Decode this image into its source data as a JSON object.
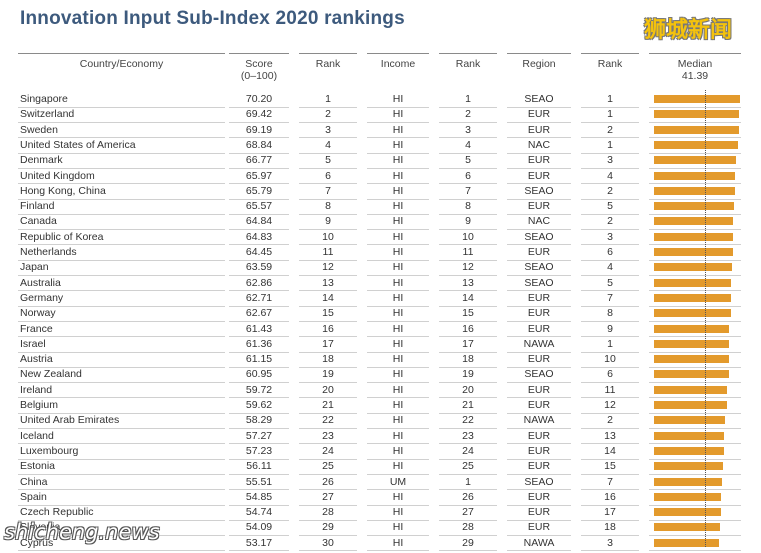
{
  "title": "Innovation Input Sub-Index 2020 rankings",
  "watermark_top": "狮城新闻",
  "watermark_bottom": "shicheng.news",
  "headers": {
    "country": "Country/Economy",
    "score": "Score",
    "score_sub": "(0–100)",
    "rank": "Rank",
    "income": "Income",
    "rank2": "Rank",
    "region": "Region",
    "rank3": "Rank",
    "median": "Median",
    "median_value": "41.39"
  },
  "chart_data": {
    "type": "bar",
    "orientation": "horizontal",
    "title": "Innovation Input Sub-Index 2020 rankings",
    "median": 41.39,
    "xlim": [
      0,
      100
    ],
    "rows": [
      {
        "country": "Singapore",
        "score": 70.2,
        "rank": 1,
        "income": "HI",
        "income_rank": 1,
        "region": "SEAO",
        "region_rank": 1
      },
      {
        "country": "Switzerland",
        "score": 69.42,
        "rank": 2,
        "income": "HI",
        "income_rank": 2,
        "region": "EUR",
        "region_rank": 1
      },
      {
        "country": "Sweden",
        "score": 69.19,
        "rank": 3,
        "income": "HI",
        "income_rank": 3,
        "region": "EUR",
        "region_rank": 2
      },
      {
        "country": "United States of America",
        "score": 68.84,
        "rank": 4,
        "income": "HI",
        "income_rank": 4,
        "region": "NAC",
        "region_rank": 1
      },
      {
        "country": "Denmark",
        "score": 66.77,
        "rank": 5,
        "income": "HI",
        "income_rank": 5,
        "region": "EUR",
        "region_rank": 3
      },
      {
        "country": "United Kingdom",
        "score": 65.97,
        "rank": 6,
        "income": "HI",
        "income_rank": 6,
        "region": "EUR",
        "region_rank": 4
      },
      {
        "country": "Hong Kong, China",
        "score": 65.79,
        "rank": 7,
        "income": "HI",
        "income_rank": 7,
        "region": "SEAO",
        "region_rank": 2
      },
      {
        "country": "Finland",
        "score": 65.57,
        "rank": 8,
        "income": "HI",
        "income_rank": 8,
        "region": "EUR",
        "region_rank": 5
      },
      {
        "country": "Canada",
        "score": 64.84,
        "rank": 9,
        "income": "HI",
        "income_rank": 9,
        "region": "NAC",
        "region_rank": 2
      },
      {
        "country": "Republic of Korea",
        "score": 64.83,
        "rank": 10,
        "income": "HI",
        "income_rank": 10,
        "region": "SEAO",
        "region_rank": 3
      },
      {
        "country": "Netherlands",
        "score": 64.45,
        "rank": 11,
        "income": "HI",
        "income_rank": 11,
        "region": "EUR",
        "region_rank": 6
      },
      {
        "country": "Japan",
        "score": 63.59,
        "rank": 12,
        "income": "HI",
        "income_rank": 12,
        "region": "SEAO",
        "region_rank": 4
      },
      {
        "country": "Australia",
        "score": 62.86,
        "rank": 13,
        "income": "HI",
        "income_rank": 13,
        "region": "SEAO",
        "region_rank": 5
      },
      {
        "country": "Germany",
        "score": 62.71,
        "rank": 14,
        "income": "HI",
        "income_rank": 14,
        "region": "EUR",
        "region_rank": 7
      },
      {
        "country": "Norway",
        "score": 62.67,
        "rank": 15,
        "income": "HI",
        "income_rank": 15,
        "region": "EUR",
        "region_rank": 8
      },
      {
        "country": "France",
        "score": 61.43,
        "rank": 16,
        "income": "HI",
        "income_rank": 16,
        "region": "EUR",
        "region_rank": 9
      },
      {
        "country": "Israel",
        "score": 61.36,
        "rank": 17,
        "income": "HI",
        "income_rank": 17,
        "region": "NAWA",
        "region_rank": 1
      },
      {
        "country": "Austria",
        "score": 61.15,
        "rank": 18,
        "income": "HI",
        "income_rank": 18,
        "region": "EUR",
        "region_rank": 10
      },
      {
        "country": "New Zealand",
        "score": 60.95,
        "rank": 19,
        "income": "HI",
        "income_rank": 19,
        "region": "SEAO",
        "region_rank": 6
      },
      {
        "country": "Ireland",
        "score": 59.72,
        "rank": 20,
        "income": "HI",
        "income_rank": 20,
        "region": "EUR",
        "region_rank": 11
      },
      {
        "country": "Belgium",
        "score": 59.62,
        "rank": 21,
        "income": "HI",
        "income_rank": 21,
        "region": "EUR",
        "region_rank": 12
      },
      {
        "country": "United Arab Emirates",
        "score": 58.29,
        "rank": 22,
        "income": "HI",
        "income_rank": 22,
        "region": "NAWA",
        "region_rank": 2
      },
      {
        "country": "Iceland",
        "score": 57.27,
        "rank": 23,
        "income": "HI",
        "income_rank": 23,
        "region": "EUR",
        "region_rank": 13
      },
      {
        "country": "Luxembourg",
        "score": 57.23,
        "rank": 24,
        "income": "HI",
        "income_rank": 24,
        "region": "EUR",
        "region_rank": 14
      },
      {
        "country": "Estonia",
        "score": 56.11,
        "rank": 25,
        "income": "HI",
        "income_rank": 25,
        "region": "EUR",
        "region_rank": 15
      },
      {
        "country": "China",
        "score": 55.51,
        "rank": 26,
        "income": "UM",
        "income_rank": 1,
        "region": "SEAO",
        "region_rank": 7
      },
      {
        "country": "Spain",
        "score": 54.85,
        "rank": 27,
        "income": "HI",
        "income_rank": 26,
        "region": "EUR",
        "region_rank": 16
      },
      {
        "country": "Czech Republic",
        "score": 54.74,
        "rank": 28,
        "income": "HI",
        "income_rank": 27,
        "region": "EUR",
        "region_rank": 17
      },
      {
        "country": "Slovenia",
        "score": 54.09,
        "rank": 29,
        "income": "HI",
        "income_rank": 28,
        "region": "EUR",
        "region_rank": 18
      },
      {
        "country": "Cyprus",
        "score": 53.17,
        "rank": 30,
        "income": "HI",
        "income_rank": 29,
        "region": "NAWA",
        "region_rank": 3
      }
    ]
  },
  "colors": {
    "title": "#3d5a7d",
    "bar": "#e39a2c",
    "watermark_top": "#f4c20d"
  }
}
